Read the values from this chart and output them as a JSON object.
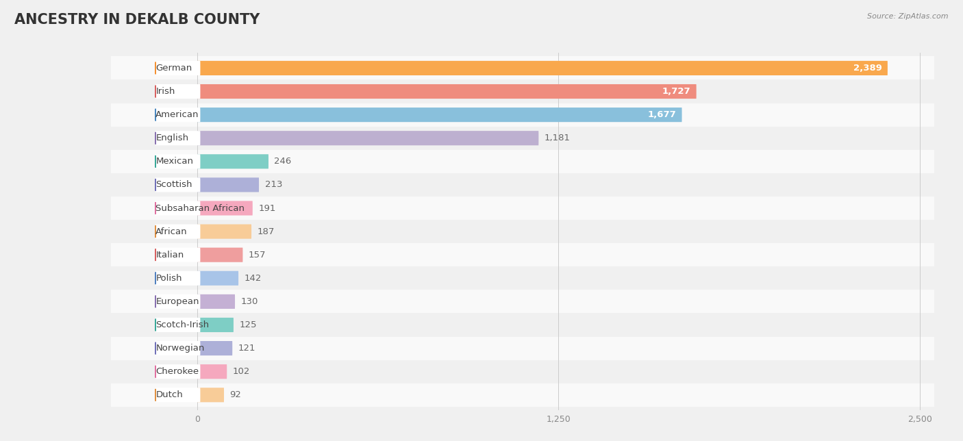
{
  "title": "ANCESTRY IN DEKALB COUNTY",
  "source": "Source: ZipAtlas.com",
  "categories": [
    "German",
    "Irish",
    "American",
    "English",
    "Mexican",
    "Scottish",
    "Subsaharan African",
    "African",
    "Italian",
    "Polish",
    "European",
    "Scotch-Irish",
    "Norwegian",
    "Cherokee",
    "Dutch"
  ],
  "values": [
    2389,
    1727,
    1677,
    1181,
    246,
    213,
    191,
    187,
    157,
    142,
    130,
    125,
    121,
    102,
    92
  ],
  "bar_colors": [
    "#F9A84D",
    "#EF8C7E",
    "#89C0DC",
    "#BDB0D0",
    "#7ECEC5",
    "#ADB0D8",
    "#F5A8BE",
    "#F8CC98",
    "#EF9E9E",
    "#A8C4E8",
    "#C4B0D4",
    "#7ECEC5",
    "#ADB0D8",
    "#F5A8BE",
    "#F8CC98"
  ],
  "icon_colors": [
    "#F49030",
    "#D86060",
    "#4A88C0",
    "#8870B0",
    "#38A898",
    "#7070B8",
    "#E070A0",
    "#E09040",
    "#D86060",
    "#5080C0",
    "#8870B0",
    "#38A898",
    "#7070B8",
    "#E070A0",
    "#E09040"
  ],
  "xlim_max": 2500,
  "xticks": [
    0,
    1250,
    2500
  ],
  "background_color": "#f0f0f0",
  "row_bg_even": "#f9f9f9",
  "row_bg_odd": "#f0f0f0",
  "title_fontsize": 15,
  "label_fontsize": 9.5,
  "value_fontsize": 9.5,
  "value_inside_threshold": 1300
}
